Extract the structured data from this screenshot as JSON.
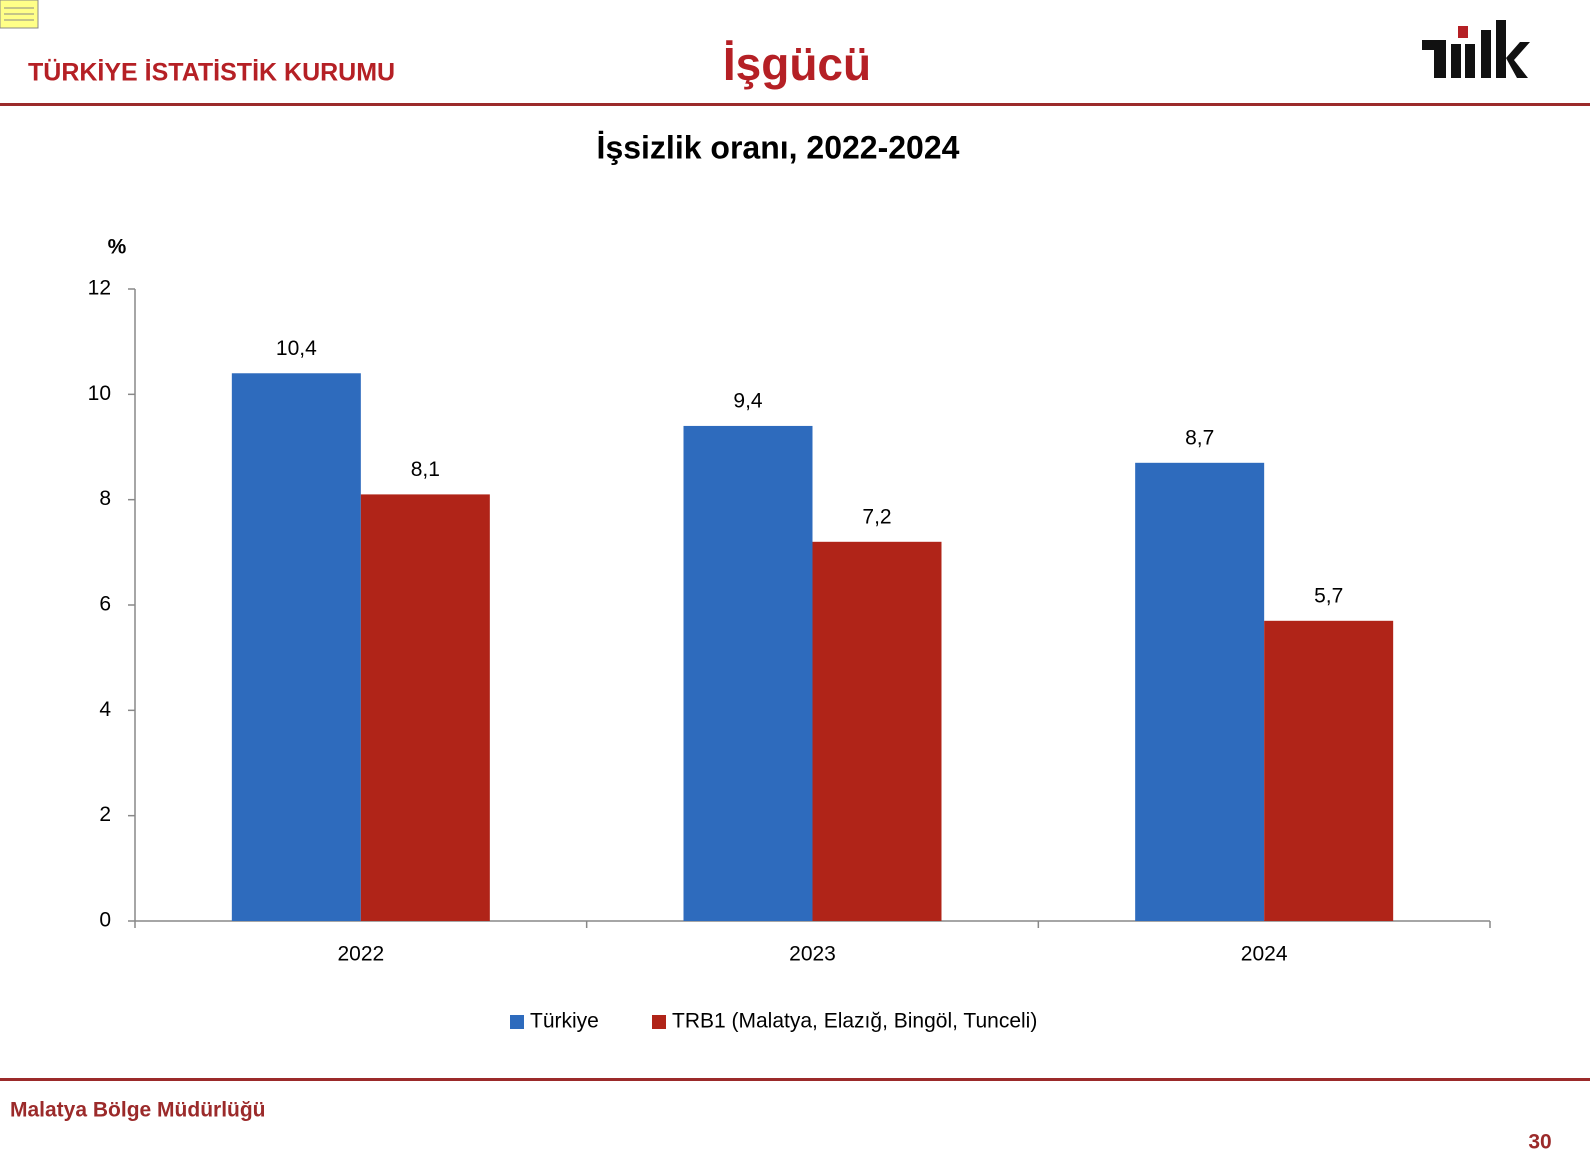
{
  "header": {
    "organization": "TÜRKİYE İSTATİSTİK KURUMU",
    "title": "İşgücü"
  },
  "footer": {
    "office": "Malatya Bölge Müdürlüğü",
    "page": "30"
  },
  "chart_data": {
    "type": "bar",
    "title": "İşsizlik oranı, 2022-2024",
    "ylabel": "%",
    "categories": [
      "2022",
      "2023",
      "2024"
    ],
    "series": [
      {
        "name": "Türkiye",
        "color": "#2e6bbd",
        "values": [
          10.4,
          9.4,
          8.7
        ],
        "value_labels": [
          "10,4",
          "9,4",
          "8,7"
        ]
      },
      {
        "name": "TRB1 (Malatya, Elazığ, Bingöl, Tunceli)",
        "color": "#b02418",
        "values": [
          8.1,
          7.2,
          5.7
        ],
        "value_labels": [
          "8,1",
          "7,2",
          "5,7"
        ]
      }
    ],
    "ylim": [
      0,
      12
    ],
    "yticks": [
      0,
      2,
      4,
      6,
      8,
      10,
      12
    ],
    "grid": false,
    "legend": "bottom"
  }
}
